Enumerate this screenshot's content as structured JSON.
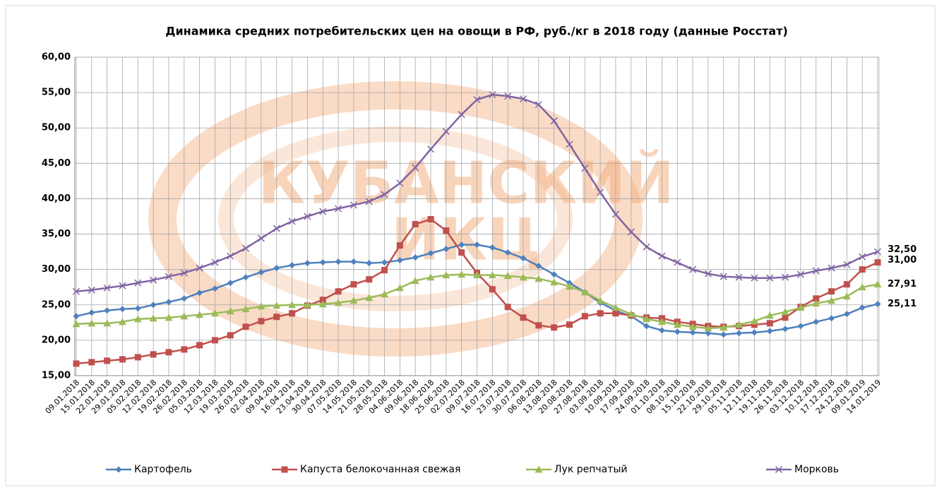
{
  "chart_data": {
    "type": "line",
    "title": "Динамика средних потребительских цен на овощи в РФ, руб./кг в 2018 году (данные Росстат)",
    "watermark": [
      "КУБАНСКИЙ",
      "ИКЦ"
    ],
    "categories": [
      "09.01.2018",
      "15.01.2018",
      "22.01.2018",
      "29.01.2018",
      "05.02.2018",
      "12.02.2018",
      "19.02.2018",
      "26.02.2018",
      "05.03.2018",
      "12.03.2018",
      "19.03.2018",
      "26.03.2018",
      "02.04.2018",
      "09.04.2018",
      "16.04.2018",
      "23.04.2018",
      "30.04.2018",
      "07.05.2018",
      "14.05.2018",
      "21.05.2018",
      "28.05.2018",
      "04.06.2018",
      "09.06.2018",
      "18.06.2018",
      "25.06.2018",
      "02.07.2018",
      "09.07.2018",
      "16.07.2018",
      "23.07.2018",
      "30.07.2018",
      "06.08.2018",
      "13.08.2018",
      "20.08.2018",
      "27.08.2018",
      "03.09.2018",
      "10.09.2018",
      "17.09.2018",
      "24.09.2018",
      "01.10.2018",
      "08.10.2018",
      "15.10.2018",
      "22.10.2018",
      "29.10.2018",
      "05.11.2018",
      "12.11.2018",
      "19.11.2018",
      "26.11.2018",
      "03.12.2018",
      "10.12.2018",
      "17.12.2018",
      "24.12.2018",
      "09.01.2019",
      "14.01.2019"
    ],
    "series": [
      {
        "name": "Картофель",
        "color": "#4f81bd",
        "marker": "diamond",
        "values": [
          23.4,
          23.9,
          24.2,
          24.4,
          24.5,
          25.0,
          25.4,
          25.9,
          26.7,
          27.3,
          28.1,
          28.9,
          29.6,
          30.2,
          30.6,
          30.9,
          31.0,
          31.1,
          31.1,
          30.9,
          31.0,
          31.3,
          31.7,
          32.3,
          32.9,
          33.5,
          33.5,
          33.1,
          32.4,
          31.6,
          30.5,
          29.3,
          28.1,
          26.8,
          25.3,
          24.2,
          23.4,
          22.0,
          21.4,
          21.2,
          21.1,
          21.0,
          20.8,
          21.0,
          21.1,
          21.3,
          21.6,
          22.0,
          22.6,
          23.1,
          23.7,
          24.6,
          25.11
        ],
        "value_labels": {
          "52": "25,11"
        }
      },
      {
        "name": "Капуста белокочанная свежая",
        "color": "#c0504d",
        "marker": "square",
        "values": [
          16.7,
          16.9,
          17.1,
          17.3,
          17.6,
          18.0,
          18.3,
          18.7,
          19.3,
          20.0,
          20.7,
          21.9,
          22.7,
          23.3,
          23.8,
          24.9,
          25.7,
          26.9,
          27.9,
          28.6,
          29.9,
          33.4,
          36.4,
          37.1,
          35.5,
          32.4,
          29.5,
          27.2,
          24.7,
          23.2,
          22.1,
          21.8,
          22.2,
          23.4,
          23.8,
          23.8,
          23.5,
          23.2,
          23.1,
          22.6,
          22.3,
          22.0,
          21.9,
          22.0,
          22.2,
          22.4,
          23.2,
          24.7,
          25.9,
          26.9,
          27.9,
          30.0,
          31.0
        ],
        "value_labels": {
          "52": "31,00"
        }
      },
      {
        "name": "Лук репчатый",
        "color": "#9bbb59",
        "marker": "triangle",
        "values": [
          22.3,
          22.4,
          22.4,
          22.6,
          23.0,
          23.1,
          23.2,
          23.4,
          23.6,
          23.8,
          24.1,
          24.4,
          24.8,
          24.9,
          25.0,
          25.0,
          25.1,
          25.3,
          25.6,
          26.0,
          26.5,
          27.4,
          28.4,
          28.9,
          29.2,
          29.3,
          29.2,
          29.2,
          29.1,
          28.9,
          28.7,
          28.2,
          27.6,
          26.8,
          25.6,
          24.6,
          23.7,
          23.0,
          22.6,
          22.2,
          21.9,
          21.7,
          21.8,
          22.2,
          22.7,
          23.5,
          24.0,
          24.6,
          25.2,
          25.6,
          26.2,
          27.5,
          27.91
        ],
        "value_labels": {
          "52": "27,91"
        }
      },
      {
        "name": "Морковь",
        "color": "#8064a2",
        "marker": "x",
        "values": [
          26.9,
          27.1,
          27.4,
          27.7,
          28.1,
          28.5,
          29.0,
          29.5,
          30.2,
          31.0,
          31.9,
          33.0,
          34.4,
          35.8,
          36.8,
          37.5,
          38.2,
          38.6,
          39.1,
          39.6,
          40.6,
          42.2,
          44.4,
          47.0,
          49.5,
          51.9,
          54.0,
          54.7,
          54.5,
          54.1,
          53.3,
          51.0,
          47.7,
          44.3,
          40.9,
          37.8,
          35.3,
          33.2,
          31.9,
          31.0,
          30.0,
          29.4,
          29.0,
          28.9,
          28.8,
          28.8,
          28.9,
          29.3,
          29.8,
          30.2,
          30.7,
          31.8,
          32.5
        ],
        "value_labels": {
          "52": "32,50"
        }
      }
    ],
    "ylim": [
      15,
      60
    ],
    "yticks": [
      {
        "value": 15,
        "label": "15,00"
      },
      {
        "value": 20,
        "label": "20,00"
      },
      {
        "value": 25,
        "label": "25,00"
      },
      {
        "value": 30,
        "label": "30,00"
      },
      {
        "value": 35,
        "label": "35,00"
      },
      {
        "value": 40,
        "label": "40,00"
      },
      {
        "value": 45,
        "label": "45,00"
      },
      {
        "value": 50,
        "label": "50,00"
      },
      {
        "value": 55,
        "label": "55,00"
      },
      {
        "value": 60,
        "label": "60,00"
      }
    ],
    "grid": true,
    "legend": "bottom"
  }
}
